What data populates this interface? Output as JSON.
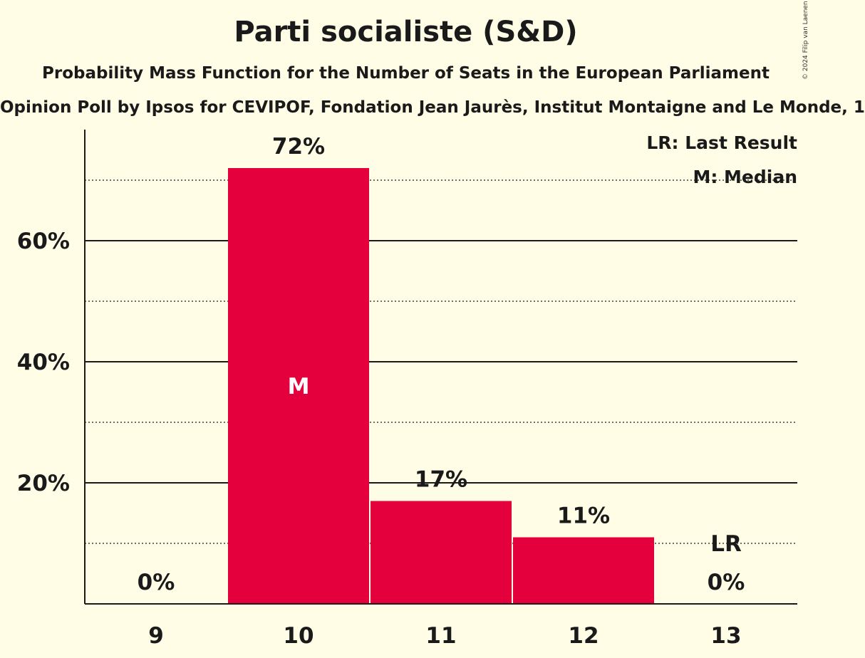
{
  "title": "Parti socialiste (S&D)",
  "subtitle": "Probability Mass Function for the Number of Seats in the European Parliament",
  "source": "Opinion Poll by Ipsos for CEVIPOF, Fondation Jean Jaurès, Institut Montaigne and Le Monde, 1",
  "copyright": "© 2024 Filip van Laenen",
  "colors": {
    "background": "#fffde6",
    "bar": "#e3003c",
    "text": "#1a1a1a"
  },
  "chart_data": {
    "type": "bar",
    "categories": [
      "9",
      "10",
      "11",
      "12",
      "13"
    ],
    "values": [
      0,
      72,
      17,
      11,
      0
    ],
    "value_labels": [
      "0%",
      "72%",
      "17%",
      "11%",
      "0%"
    ],
    "ylim": [
      0,
      78
    ],
    "yticks": [
      20,
      40,
      60
    ],
    "ytick_labels": [
      "20%",
      "40%",
      "60%"
    ],
    "minor_gridlines": [
      10,
      30,
      50,
      70
    ],
    "median_category": "10",
    "median_label": "M",
    "last_result_category": "13",
    "last_result_label": "LR",
    "legend": [
      "LR: Last Result",
      "M: Median"
    ],
    "legend_position": "top-right"
  }
}
